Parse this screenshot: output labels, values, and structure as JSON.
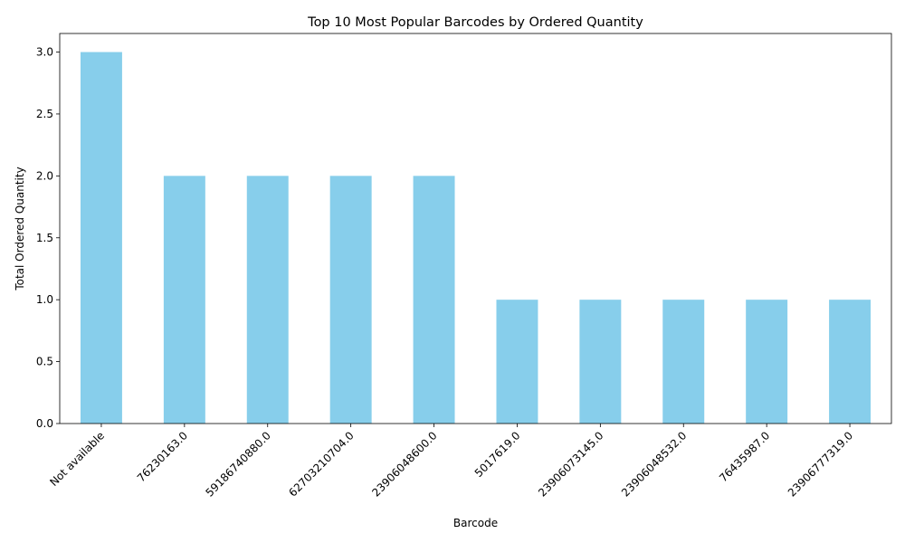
{
  "chart_data": {
    "type": "bar",
    "title": "Top 10 Most Popular Barcodes by Ordered Quantity",
    "xlabel": "Barcode",
    "ylabel": "Total Ordered Quantity",
    "categories": [
      "Not available",
      "76230163.0",
      "59186740880.0",
      "62703210704.0",
      "23906048600.0",
      "5017619.0",
      "23906073145.0",
      "23906048532.0",
      "76435987.0",
      "23906777319.0"
    ],
    "values": [
      3,
      2,
      2,
      2,
      2,
      1,
      1,
      1,
      1,
      1
    ],
    "ylim": [
      0,
      3.15
    ],
    "yticks": [
      "0.0",
      "0.5",
      "1.0",
      "1.5",
      "2.0",
      "2.5",
      "3.0"
    ],
    "grid": false,
    "bar_color": "#87ceeb"
  }
}
